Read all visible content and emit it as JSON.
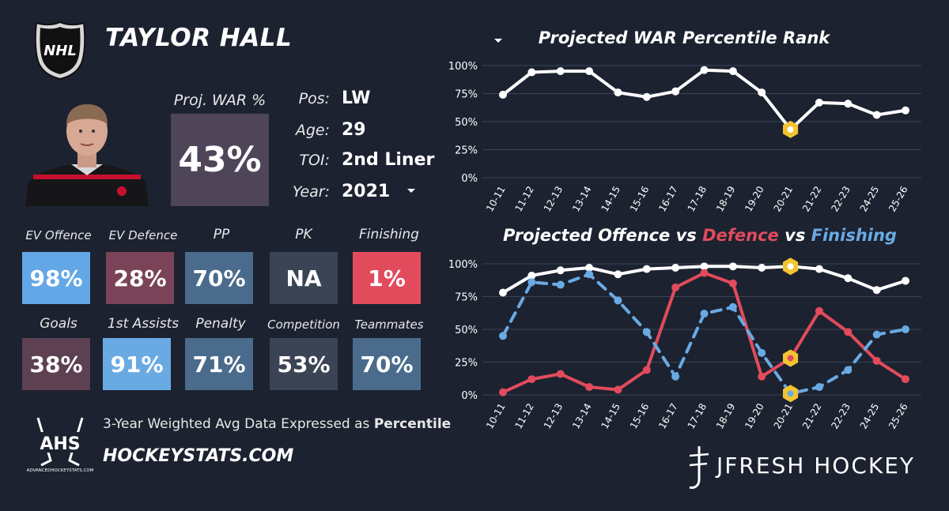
{
  "player": {
    "name": "TAYLOR HALL"
  },
  "proj_war": {
    "label": "Proj. WAR %",
    "value": "43%"
  },
  "info": [
    {
      "label": "Pos:",
      "value": "LW"
    },
    {
      "label": "Age:",
      "value": "29"
    },
    {
      "label": "TOI:",
      "value": "2nd Liner"
    },
    {
      "label": "Year:",
      "value": "2021"
    }
  ],
  "tiles_row1": [
    {
      "label": "EV Offence",
      "value": "98%",
      "color": "#64a7e6"
    },
    {
      "label": "EV Defence",
      "value": "28%",
      "color": "#7a4357"
    },
    {
      "label": "PP",
      "value": "70%",
      "color": "#4a6b8c"
    },
    {
      "label": "PK",
      "value": "NA",
      "color": "#3a4454"
    },
    {
      "label": "Finishing",
      "value": "1%",
      "color": "#e24b5c"
    }
  ],
  "tiles_row2": [
    {
      "label": "Goals",
      "value": "38%",
      "color": "#5d4052"
    },
    {
      "label": "1st Assists",
      "value": "91%",
      "color": "#6aaae3"
    },
    {
      "label": "Penalty",
      "value": "71%",
      "color": "#4a6b8c"
    },
    {
      "label": "Competition",
      "value": "53%",
      "color": "#3a4454"
    },
    {
      "label": "Teammates",
      "value": "70%",
      "color": "#4a6b8c"
    }
  ],
  "footer": {
    "text": "3-Year Weighted Avg Data Expressed as",
    "text_bold": "Percentile",
    "site": "HOCKEYSTATS.COM",
    "ahs_logo": "AHS",
    "ahs_small": "ADVANCEDHOCKEYSTATS.COM",
    "jfresh": "JFRESH HOCKEY",
    "nhl": "NHL"
  },
  "chart_data": [
    {
      "type": "line",
      "title": "Projected WAR Percentile Rank",
      "categories": [
        "10-11",
        "11-12",
        "12-13",
        "13-14",
        "14-15",
        "15-16",
        "16-17",
        "17-18",
        "18-19",
        "19-20",
        "20-21",
        "21-22",
        "22-23",
        "24-25",
        "25-26"
      ],
      "ylim": [
        0,
        100
      ],
      "yticks": [
        "0%",
        "25%",
        "50%",
        "75%",
        "100%"
      ],
      "highlight_index": 10,
      "series": [
        {
          "name": "WAR",
          "color": "#ffffff",
          "dashed": false,
          "values": [
            74,
            94,
            95,
            95,
            76,
            72,
            77,
            96,
            95,
            76,
            43,
            67,
            66,
            56,
            60
          ]
        }
      ]
    },
    {
      "type": "line",
      "title_parts": [
        {
          "text": "Projected Offence vs ",
          "color": "#ffffff"
        },
        {
          "text": "Defence",
          "color": "#e24b5c"
        },
        {
          "text": " vs ",
          "color": "#ffffff"
        },
        {
          "text": "Finishing",
          "color": "#6aaae3"
        }
      ],
      "categories": [
        "10-11",
        "11-12",
        "12-13",
        "13-14",
        "14-15",
        "15-16",
        "16-17",
        "17-18",
        "18-19",
        "19-20",
        "20-21",
        "21-22",
        "22-23",
        "24-25",
        "25-26"
      ],
      "ylim": [
        0,
        100
      ],
      "yticks": [
        "0%",
        "25%",
        "50%",
        "75%",
        "100%"
      ],
      "highlight_index": 10,
      "series": [
        {
          "name": "Offence",
          "color": "#ffffff",
          "dashed": false,
          "values": [
            78,
            91,
            95,
            97,
            92,
            96,
            97,
            98,
            98,
            97,
            98,
            96,
            89,
            80,
            87
          ]
        },
        {
          "name": "Defence",
          "color": "#e24b5c",
          "dashed": false,
          "values": [
            2,
            12,
            16,
            6,
            4,
            19,
            82,
            93,
            85,
            14,
            28,
            64,
            48,
            26,
            12
          ]
        },
        {
          "name": "Finishing",
          "color": "#6aaae3",
          "dashed": true,
          "values": [
            45,
            86,
            84,
            92,
            72,
            48,
            14,
            62,
            67,
            32,
            1,
            6,
            19,
            46,
            50
          ]
        }
      ]
    }
  ]
}
